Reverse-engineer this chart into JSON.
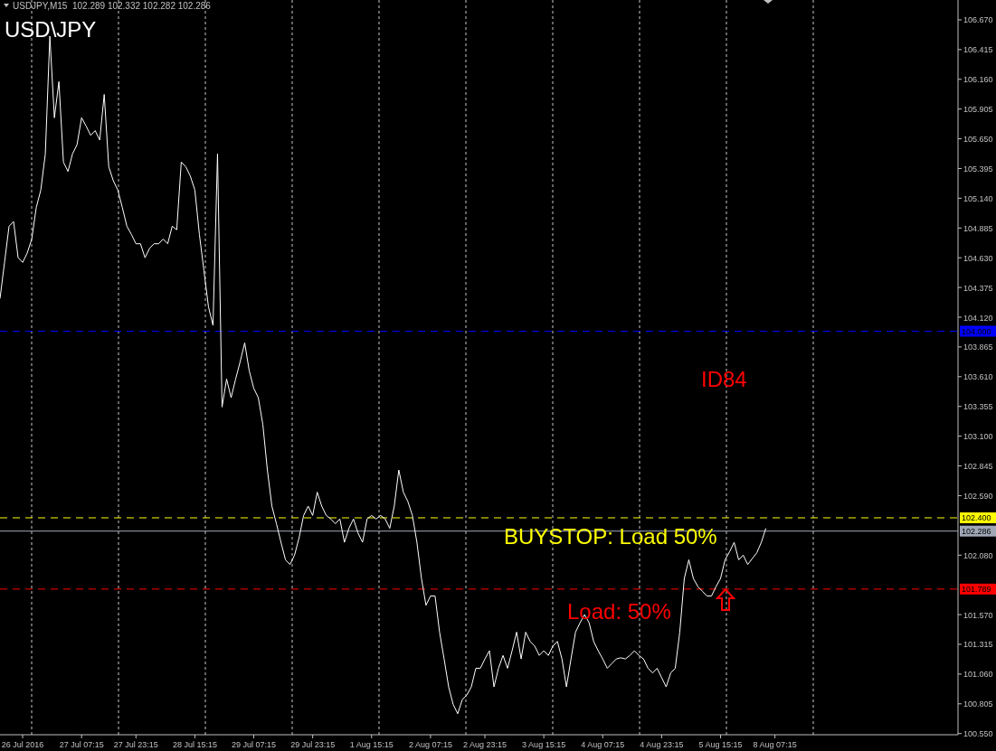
{
  "chart_data": {
    "type": "line",
    "title": "USDJPY,M15  102.289 102.332 102.282 102.286",
    "subtitle": "USD\\JPY",
    "annotations": [
      "ID84",
      "BUYSTOP: Load 50%",
      "Load: 50%"
    ],
    "ylim": [
      100.54,
      106.84
    ],
    "categories": [
      null,
      null,
      null,
      null,
      null,
      "26 Jul 2016",
      null,
      null,
      null,
      null,
      null,
      null,
      null,
      null,
      null,
      null,
      null,
      null,
      "27 Jul 07:15",
      null,
      null,
      null,
      null,
      null,
      null,
      null,
      null,
      null,
      null,
      null,
      "27 Jul 23:15",
      null,
      null,
      null,
      null,
      null,
      null,
      null,
      null,
      null,
      null,
      null,
      null,
      "28 Jul 15:15",
      null,
      null,
      null,
      null,
      null,
      null,
      null,
      null,
      null,
      null,
      null,
      null,
      "29 Jul 07:15",
      null,
      null,
      null,
      null,
      null,
      null,
      null,
      null,
      null,
      null,
      null,
      null,
      "29 Jul 23:15",
      null,
      null,
      null,
      null,
      null,
      null,
      null,
      null,
      null,
      null,
      null,
      null,
      "1 Aug 15:15",
      null,
      null,
      null,
      null,
      null,
      null,
      null,
      null,
      null,
      null,
      null,
      null,
      "2 Aug 07:15",
      null,
      null,
      null,
      null,
      null,
      null,
      null,
      null,
      null,
      null,
      null,
      "2 Aug 23:15",
      null,
      null,
      null,
      null,
      null,
      null,
      null,
      null,
      null,
      null,
      null,
      null,
      "3 Aug 15:15",
      null,
      null,
      null,
      null,
      null,
      null,
      null,
      null,
      null,
      null,
      null,
      null,
      "4 Aug 07:15",
      null,
      null,
      null,
      null,
      null,
      null,
      null,
      null,
      null,
      null,
      null,
      null,
      "4 Aug 23:15",
      null,
      null,
      null,
      null,
      null,
      null,
      null,
      null,
      null,
      null,
      null,
      null,
      "5 Aug 15:15",
      null,
      null,
      null,
      null,
      null,
      null,
      null,
      null,
      null,
      null,
      null,
      "8 Aug 07:15",
      null,
      null,
      null,
      null,
      null,
      null,
      null,
      null,
      null,
      null,
      null,
      null,
      null,
      null,
      null,
      null,
      null,
      null,
      null,
      null,
      null,
      null,
      null,
      null,
      null,
      null,
      null,
      null,
      null,
      null,
      null,
      null,
      null,
      null,
      null,
      null,
      null,
      null,
      null,
      null
    ],
    "yticks": [
      {
        "value": 100.55,
        "label": "100.550"
      },
      {
        "value": 100.805,
        "label": "100.805"
      },
      {
        "value": 101.06,
        "label": "101.060"
      },
      {
        "value": 101.315,
        "label": "101.315"
      },
      {
        "value": 101.57,
        "label": "101.570"
      },
      {
        "value": 102.08,
        "label": "102.080"
      },
      {
        "value": 102.59,
        "label": "102.590"
      },
      {
        "value": 102.845,
        "label": "102.845"
      },
      {
        "value": 103.1,
        "label": "103.100"
      },
      {
        "value": 103.355,
        "label": "103.355"
      },
      {
        "value": 103.61,
        "label": "103.610"
      },
      {
        "value": 103.865,
        "label": "103.865"
      },
      {
        "value": 104.12,
        "label": "104.120"
      },
      {
        "value": 104.375,
        "label": "104.375"
      },
      {
        "value": 104.63,
        "label": "104.630"
      },
      {
        "value": 104.885,
        "label": "104.885"
      },
      {
        "value": 105.14,
        "label": "105.140"
      },
      {
        "value": 105.395,
        "label": "105.395"
      },
      {
        "value": 105.65,
        "label": "105.650"
      },
      {
        "value": 105.905,
        "label": "105.905"
      },
      {
        "value": 106.16,
        "label": "106.160"
      },
      {
        "value": 106.415,
        "label": "106.415"
      },
      {
        "value": 106.67,
        "label": "106.670"
      }
    ],
    "ref_lines": [
      {
        "axis": "y",
        "value": 104.0,
        "label": "104.000",
        "color": "#0000ff",
        "line_style": "dashed"
      },
      {
        "axis": "y",
        "value": 102.4,
        "label": "102.400",
        "color": "#ffff00",
        "line_style": "dashed"
      },
      {
        "axis": "y",
        "value": 102.286,
        "label": "102.286",
        "color": "#a0a8b8",
        "line_style": "solid"
      },
      {
        "axis": "y",
        "value": 101.789,
        "label": "101.789",
        "color": "#ff0000",
        "line_style": "dashed"
      }
    ],
    "series": [
      {
        "color": "#ffffff",
        "values": [
          104.28,
          104.59,
          104.9,
          104.94,
          104.63,
          104.59,
          104.67,
          104.79,
          105.06,
          105.21,
          105.52,
          106.53,
          105.83,
          106.14,
          105.45,
          105.37,
          105.52,
          105.6,
          105.83,
          105.76,
          105.68,
          105.72,
          105.64,
          106.03,
          105.41,
          105.29,
          105.21,
          105.06,
          104.9,
          104.83,
          104.75,
          104.75,
          104.63,
          104.71,
          104.75,
          104.75,
          104.79,
          104.75,
          104.9,
          104.87,
          105.45,
          105.41,
          105.33,
          105.21,
          104.83,
          104.52,
          104.21,
          104.05,
          105.52,
          103.35,
          103.59,
          103.43,
          103.59,
          103.74,
          103.9,
          103.66,
          103.51,
          103.43,
          103.2,
          102.81,
          102.5,
          102.35,
          102.19,
          102.04,
          102.0,
          102.08,
          102.23,
          102.42,
          102.5,
          102.42,
          102.62,
          102.5,
          102.42,
          102.39,
          102.35,
          102.39,
          102.19,
          102.31,
          102.39,
          102.27,
          102.19,
          102.39,
          102.42,
          102.39,
          102.42,
          102.39,
          102.31,
          102.5,
          102.81,
          102.62,
          102.54,
          102.42,
          102.19,
          101.88,
          101.65,
          101.73,
          101.73,
          101.42,
          101.19,
          100.95,
          100.8,
          100.72,
          100.84,
          100.88,
          100.95,
          101.11,
          101.11,
          101.19,
          101.26,
          100.95,
          101.11,
          101.22,
          101.11,
          101.26,
          101.42,
          101.19,
          101.42,
          101.34,
          101.3,
          101.22,
          101.26,
          101.22,
          101.3,
          101.34,
          101.19,
          100.95,
          101.19,
          101.42,
          101.5,
          101.57,
          101.5,
          101.34,
          101.26,
          101.19,
          101.11,
          101.15,
          101.19,
          101.2,
          101.19,
          101.22,
          101.26,
          101.22,
          101.19,
          101.11,
          101.07,
          101.11,
          101.03,
          100.95,
          101.07,
          101.11,
          101.42,
          101.88,
          102.04,
          101.88,
          101.81,
          101.77,
          101.73,
          101.73,
          101.81,
          101.88,
          102.04,
          102.11,
          102.19,
          102.04,
          102.08,
          102.0,
          102.05,
          102.1,
          102.19,
          102.31,
          null,
          null,
          null,
          null,
          null,
          null,
          null,
          null,
          null,
          null,
          null,
          null,
          null,
          null,
          null,
          null,
          null,
          null,
          null,
          null,
          null,
          null,
          null,
          null,
          null,
          null,
          null,
          null,
          null,
          null,
          null,
          null,
          null,
          null,
          null,
          null,
          null,
          null,
          null,
          null,
          null,
          null
        ]
      }
    ]
  }
}
